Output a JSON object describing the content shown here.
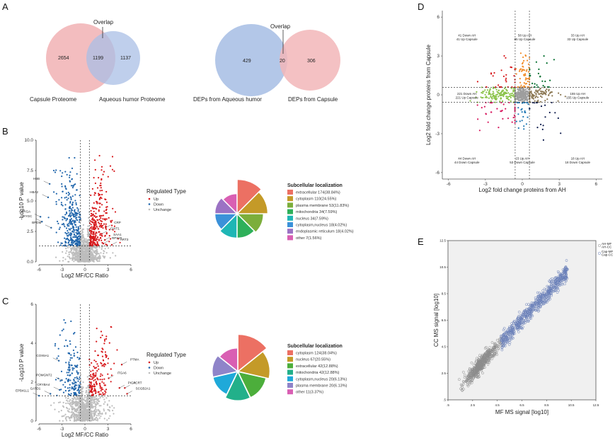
{
  "panels": {
    "A": "A",
    "B": "B",
    "C": "C",
    "D": "D",
    "E": "E"
  },
  "chart_data": [
    {
      "id": "A1",
      "type": "venn",
      "overlap_label": "Overlap",
      "sets": [
        {
          "name": "Capsule Proteome",
          "unique": 2654,
          "color": "#f2b6b8"
        },
        {
          "name": "Aqueous humor Proteome",
          "unique": 1137,
          "color": "#b3c7e8"
        }
      ],
      "intersection": 1199
    },
    {
      "id": "A2",
      "type": "venn",
      "overlap_label": "Overlap",
      "sets": [
        {
          "name": "DEPs from Aqueous humor",
          "unique": 429,
          "color": "#b3c7e8"
        },
        {
          "name": "DEPs from Capsule",
          "unique": 306,
          "color": "#f2b6b8"
        }
      ],
      "intersection": 20
    },
    {
      "id": "B-volcano",
      "type": "scatter",
      "xlabel": "Log2 MF/CC Ratio",
      "ylabel": "-Log10 P value",
      "xlim": [
        -6,
        6
      ],
      "ylim": [
        0,
        10
      ],
      "xticks": [
        "-6",
        "-3",
        "0",
        "3",
        "6"
      ],
      "yticks": [
        "0.0",
        "2.5",
        "5.0",
        "7.5",
        "10.0"
      ],
      "thresholds": {
        "x": [
          -0.58,
          0.58
        ],
        "y": 1.3
      },
      "legend": {
        "title": "Regulated Type",
        "items": [
          {
            "name": "Up",
            "color": "#d7191c"
          },
          {
            "name": "Down",
            "color": "#2166ac"
          },
          {
            "name": "Unchange",
            "color": "#bdbdbd"
          }
        ]
      },
      "annotations": [
        {
          "label": "HBB",
          "x": -4.6,
          "y": 6.4
        },
        {
          "label": "HBA2",
          "x": -4.8,
          "y": 5.3
        },
        {
          "label": "CRYGA",
          "x": -5.8,
          "y": 3.7
        },
        {
          "label": "CRYGC",
          "x": -5.6,
          "y": 3.3
        },
        {
          "label": "BPGM",
          "x": -4.4,
          "y": 2.8
        },
        {
          "label": "CRP",
          "x": 2.7,
          "y": 2.8
        },
        {
          "label": "CHIT1",
          "x": 2.2,
          "y": 2.3
        },
        {
          "label": "SAA1",
          "x": 2.6,
          "y": 1.8
        },
        {
          "label": "RPS20",
          "x": 2.4,
          "y": 1.5
        },
        {
          "label": "ART3",
          "x": 3.5,
          "y": 1.4
        }
      ]
    },
    {
      "id": "B-rose",
      "type": "pie",
      "legend_title": "Subcellular localization",
      "slices": [
        {
          "label": "extracellular 174(38.84%)",
          "value": 174,
          "color": "#ec7063"
        },
        {
          "label": "cytoplasm 110(24.55%)",
          "value": 110,
          "color": "#c49a28"
        },
        {
          "label": "plasma membrane 53(11.83%)",
          "value": 53,
          "color": "#7cae3b"
        },
        {
          "label": "mitochondria 34(7.59%)",
          "value": 34,
          "color": "#2eb05a"
        },
        {
          "label": "nucleus 34(7.59%)",
          "value": 34,
          "color": "#1fb6b5"
        },
        {
          "label": "cytoplasm,nucleus 18(4.02%)",
          "value": 18,
          "color": "#3b91d9"
        },
        {
          "label": "endoplasmic reticulum 18(4.02%)",
          "value": 18,
          "color": "#9b72c4"
        },
        {
          "label": "other 7(1.56%)",
          "value": 7,
          "color": "#d95fb3"
        }
      ]
    },
    {
      "id": "C-volcano",
      "type": "scatter",
      "xlabel": "Log2 MF/CC Ratio",
      "ylabel": "-Log10 P value",
      "xlim": [
        -6,
        6
      ],
      "ylim": [
        0,
        6
      ],
      "xticks": [
        "-6",
        "-3",
        "0",
        "3",
        "6"
      ],
      "yticks": [
        "0",
        "2",
        "4",
        "6"
      ],
      "thresholds": {
        "x": [
          -0.58,
          0.58
        ],
        "y": 1.3
      },
      "legend": {
        "title": "Regulated Type",
        "items": [
          {
            "name": "Up",
            "color": "#d7191c"
          },
          {
            "name": "Down",
            "color": "#2166ac"
          },
          {
            "name": "Unchange",
            "color": "#bdbdbd"
          }
        ]
      },
      "annotations": [
        {
          "label": "COX6A1",
          "x": -3.4,
          "y": 3.1
        },
        {
          "label": "POMGNT2",
          "x": -3.0,
          "y": 2.1
        },
        {
          "label": "CRYBA4",
          "x": -3.3,
          "y": 1.6
        },
        {
          "label": "EPB41L1",
          "x": -6.0,
          "y": 1.3
        },
        {
          "label": "GATD1",
          "x": -4.5,
          "y": 1.4
        },
        {
          "label": "PTMA",
          "x": 4.8,
          "y": 2.9
        },
        {
          "label": "ITGA6",
          "x": 3.1,
          "y": 2.2
        },
        {
          "label": "ACRT",
          "x": 5.2,
          "y": 1.7
        },
        {
          "label": "PIGR",
          "x": 4.5,
          "y": 1.7
        },
        {
          "label": "SCGB2A1",
          "x": 5.5,
          "y": 1.4
        }
      ]
    },
    {
      "id": "C-rose",
      "type": "pie",
      "legend_title": "Subcellular localization",
      "slices": [
        {
          "label": "cytoplasm 124(38.04%)",
          "value": 124,
          "color": "#ec7063"
        },
        {
          "label": "nucleus 67(20.55%)",
          "value": 67,
          "color": "#c49a28"
        },
        {
          "label": "extracellular 42(12.88%)",
          "value": 42,
          "color": "#4cae3b"
        },
        {
          "label": "mitochondria 42(12.88%)",
          "value": 42,
          "color": "#22b08a"
        },
        {
          "label": "cytoplasm,nucleus 20(6.13%)",
          "value": 20,
          "color": "#1fa9d9"
        },
        {
          "label": "plasma membrane 20(6.13%)",
          "value": 20,
          "color": "#8f84c9"
        },
        {
          "label": "other 11(3.37%)",
          "value": 11,
          "color": "#d95fb3"
        }
      ]
    },
    {
      "id": "D-quadrant",
      "type": "scatter",
      "xlabel": "Log2 fold change proteins from AH",
      "ylabel": "Log2 fold change proteins from Capsule",
      "xlim": [
        -6.5,
        6.5
      ],
      "ylim": [
        -6.5,
        6.5
      ],
      "xticks": [
        "-6",
        "-3",
        "0",
        "3",
        "6"
      ],
      "yticks": [
        "-6",
        "-3",
        "0",
        "3",
        "6"
      ],
      "thresholds": {
        "x": [
          -0.58,
          0.58
        ],
        "y": [
          -0.58,
          0.58
        ]
      },
      "annotations": [
        {
          "lines": [
            "41 Down AH",
            "41 Up Capsule"
          ],
          "x": -4.5,
          "y": 4.5
        },
        {
          "lines": [
            "58 Up AH",
            "85 Up Capsule"
          ],
          "x": 0.2,
          "y": 4.5
        },
        {
          "lines": [
            "33 Up AH",
            "33 Up Capsule"
          ],
          "x": 4.5,
          "y": 4.5
        },
        {
          "lines": [
            "221 Down AH",
            "221 Up Capsule"
          ],
          "x": -4.5,
          "y": 0.0
        },
        {
          "lines": [
            "155 Up AH",
            "155 Up Capsule"
          ],
          "x": 4.5,
          "y": 0.0
        },
        {
          "lines": [
            "44 Down AH",
            "44 Down Capsule"
          ],
          "x": -4.5,
          "y": -5.0
        },
        {
          "lines": [
            "23 Up AH",
            "53 Down Capsule"
          ],
          "x": 0.0,
          "y": -5.0
        },
        {
          "lines": [
            "18 Up AH",
            "18 Down Capsule"
          ],
          "x": 4.5,
          "y": -5.0
        }
      ],
      "group_colors": {
        "up_capsule_center": "#d7191c",
        "up_both": "#006d2c",
        "up_capsule_up_ah_mid": "#f28e2b",
        "left_mid": "#8bc34a",
        "center": "#9e9e9e",
        "right_mid": "#8c7853",
        "down_left": "#d81b60",
        "down_center": "#1f77b4",
        "down_right": "#0d1b4c"
      }
    },
    {
      "id": "E-scatter",
      "type": "scatter",
      "xlabel": "MF MS signal [log10]",
      "ylabel": "CC MS signal [log10]",
      "xlim": [
        0.5,
        12.5
      ],
      "ylim": [
        0.5,
        12.5
      ],
      "xticks": [
        ".5",
        "2.5",
        "4.5",
        "6.5",
        "8.5",
        "10.5",
        "12.5"
      ],
      "yticks": [
        ".5",
        "2.5",
        "4.5",
        "6.5",
        "8.5",
        "10.5",
        "12.5"
      ],
      "legend": [
        {
          "lines": [
            "AH-MF",
            "AH-CC"
          ],
          "color": "#8c8c8c"
        },
        {
          "lines": [
            "Cap-MF",
            "Cap-CC"
          ],
          "color": "#6a80b9"
        }
      ],
      "series": [
        {
          "name": "AH",
          "center": [
            3.2,
            3.0
          ],
          "range_x": [
            1.5,
            5.2
          ],
          "color": "#8c8c8c"
        },
        {
          "name": "Capsule",
          "center": [
            7.0,
            7.0
          ],
          "range_x": [
            4.8,
            10.2
          ],
          "color": "#6a80b9"
        }
      ]
    }
  ]
}
